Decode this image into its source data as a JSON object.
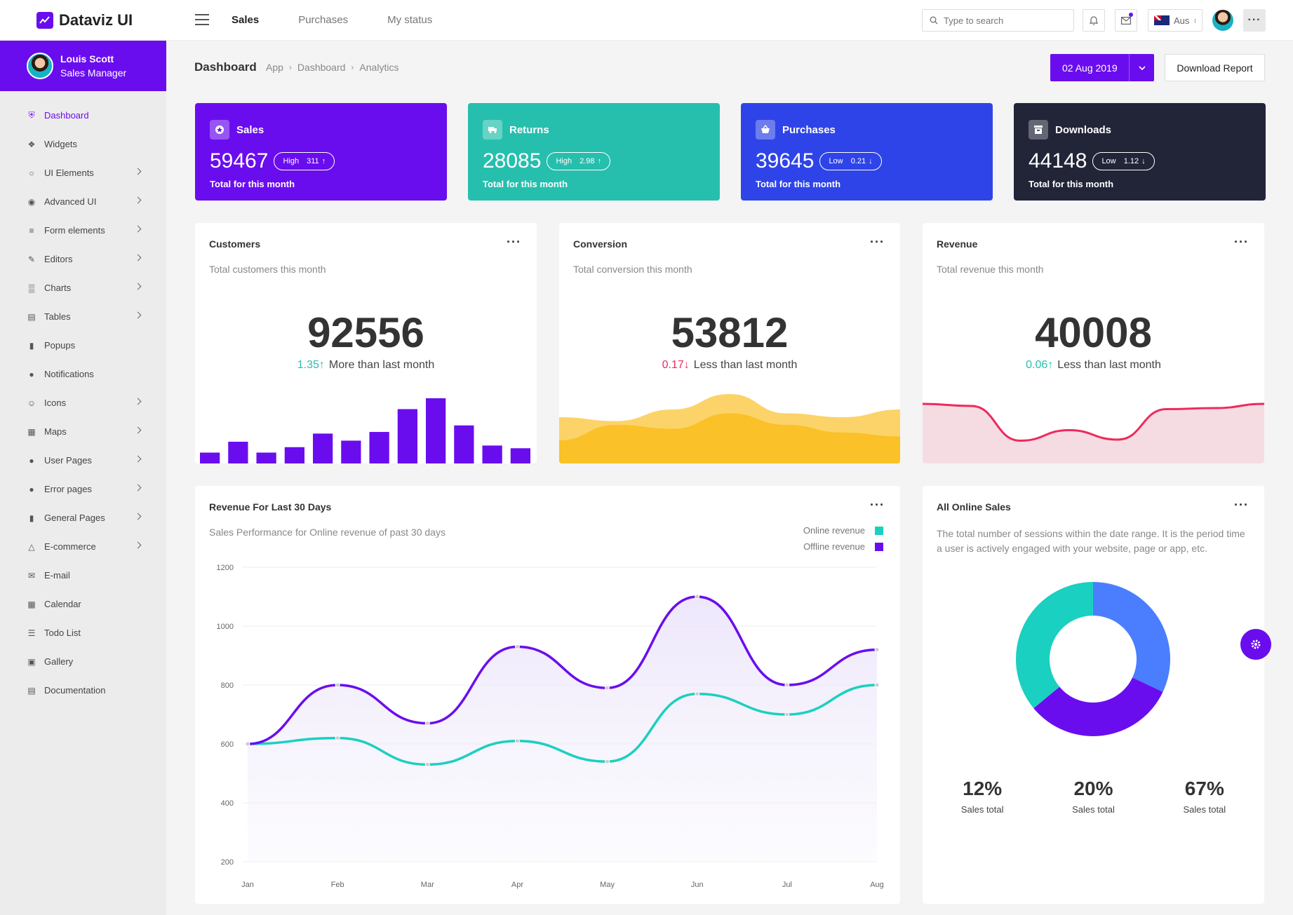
{
  "app": {
    "brand": "Dataviz UI"
  },
  "topnav": [
    {
      "label": "Sales",
      "active": true
    },
    {
      "label": "Purchases",
      "active": false
    },
    {
      "label": "My status",
      "active": false
    }
  ],
  "search": {
    "placeholder": "Type to search"
  },
  "lang": {
    "label": "Aus"
  },
  "profile": {
    "name": "Louis Scott",
    "role": "Sales Manager"
  },
  "sidebar": {
    "items": [
      {
        "label": "Dashboard",
        "icon": "shield-icon",
        "active": true,
        "chevron": false
      },
      {
        "label": "Widgets",
        "icon": "puzzle-icon",
        "active": false,
        "chevron": false
      },
      {
        "label": "UI Elements",
        "icon": "circle-icon",
        "active": false,
        "chevron": true
      },
      {
        "label": "Advanced UI",
        "icon": "palette-icon",
        "active": false,
        "chevron": true
      },
      {
        "label": "Form elements",
        "icon": "list-icon",
        "active": false,
        "chevron": true
      },
      {
        "label": "Editors",
        "icon": "pencil-icon",
        "active": false,
        "chevron": true
      },
      {
        "label": "Charts",
        "icon": "bar-chart-icon",
        "active": false,
        "chevron": true
      },
      {
        "label": "Tables",
        "icon": "table-icon",
        "active": false,
        "chevron": true
      },
      {
        "label": "Popups",
        "icon": "chat-icon",
        "active": false,
        "chevron": false
      },
      {
        "label": "Notifications",
        "icon": "bell-icon",
        "active": false,
        "chevron": false
      },
      {
        "label": "Icons",
        "icon": "smile-icon",
        "active": false,
        "chevron": true
      },
      {
        "label": "Maps",
        "icon": "map-icon",
        "active": false,
        "chevron": true
      },
      {
        "label": "User Pages",
        "icon": "user-icon",
        "active": false,
        "chevron": true
      },
      {
        "label": "Error pages",
        "icon": "alert-icon",
        "active": false,
        "chevron": true
      },
      {
        "label": "General Pages",
        "icon": "file-icon",
        "active": false,
        "chevron": true
      },
      {
        "label": "E-commerce",
        "icon": "basket-icon",
        "active": false,
        "chevron": true
      },
      {
        "label": "E-mail",
        "icon": "mail-icon",
        "active": false,
        "chevron": false
      },
      {
        "label": "Calendar",
        "icon": "calendar-icon",
        "active": false,
        "chevron": false
      },
      {
        "label": "Todo List",
        "icon": "checklist-icon",
        "active": false,
        "chevron": false
      },
      {
        "label": "Gallery",
        "icon": "image-icon",
        "active": false,
        "chevron": false
      },
      {
        "label": "Documentation",
        "icon": "doc-icon",
        "active": false,
        "chevron": false
      }
    ]
  },
  "header": {
    "title": "Dashboard",
    "breadcrumbs": [
      "App",
      "Dashboard",
      "Analytics"
    ],
    "date_label": "02 Aug 2019",
    "report_label": "Download Report"
  },
  "tiles": [
    {
      "label": "Sales",
      "value": "59467",
      "badge_level": "High",
      "badge_value": "311",
      "badge_dir": "up",
      "sub": "Total for this month",
      "color": "#6a0dee",
      "icon": "star-icon"
    },
    {
      "label": "Returns",
      "value": "28085",
      "badge_level": "High",
      "badge_value": "2.98",
      "badge_dir": "up",
      "sub": "Total for this month",
      "color": "#26bfad",
      "icon": "truck-icon"
    },
    {
      "label": "Purchases",
      "value": "39645",
      "badge_level": "Low",
      "badge_value": "0.21",
      "badge_dir": "down",
      "sub": "Total for this month",
      "color": "#2f44e8",
      "icon": "basket-icon"
    },
    {
      "label": "Downloads",
      "value": "44148",
      "badge_level": "Low",
      "badge_value": "1.12",
      "badge_dir": "down",
      "sub": "Total for this month",
      "color": "#222538",
      "icon": "archive-icon"
    }
  ],
  "kpis": [
    {
      "title": "Customers",
      "sub": "Total customers this month",
      "value": "92556",
      "change": "1.35",
      "dir": "up",
      "change_color": "#26bfad",
      "note": "More than last month"
    },
    {
      "title": "Conversion",
      "sub": "Total conversion this month",
      "value": "53812",
      "change": "0.17",
      "dir": "down",
      "change_color": "#ee2a5c",
      "note": "Less than last month"
    },
    {
      "title": "Revenue",
      "sub": "Total revenue this month",
      "value": "40008",
      "change": "0.06",
      "dir": "up",
      "change_color": "#26bfad",
      "note": "Less than last month"
    }
  ],
  "customers_bars": {
    "values": [
      2,
      4,
      2,
      3,
      5.5,
      4.2,
      5.8,
      10,
      12,
      7,
      3.3,
      2.8
    ],
    "color": "#6a0dee"
  },
  "conversion_area": {
    "back": [
      6,
      5.5,
      7,
      9,
      6.5,
      6,
      7
    ],
    "front": [
      3,
      5,
      4.5,
      6.5,
      5,
      4,
      3.5
    ],
    "colors": [
      "#fbcb4e",
      "#fac025"
    ]
  },
  "revenue_area": {
    "values": [
      7,
      6.8,
      3.5,
      4.5,
      3.6,
      6.5,
      6.6,
      7
    ],
    "color": "#ee2a5c",
    "fill": "#f5dce3"
  },
  "revenue30": {
    "title": "Revenue For Last 30 Days",
    "sub": "Sales Performance for Online revenue of past 30 days",
    "legend": [
      {
        "name": "Online revenue",
        "color": "#1ad0c0"
      },
      {
        "name": "Offline revenue",
        "color": "#6a0dee"
      }
    ]
  },
  "online_sales": {
    "title": "All Online Sales",
    "sub": "The total number of sessions within the date range. It is the period time a user is actively engaged with your website, page or app, etc.",
    "stats": [
      {
        "value": "12%",
        "label": "Sales total"
      },
      {
        "value": "20%",
        "label": "Sales total"
      },
      {
        "value": "67%",
        "label": "Sales total"
      }
    ]
  },
  "chart_data": [
    {
      "type": "line",
      "categories": [
        "Jan",
        "Feb",
        "Mar",
        "Apr",
        "May",
        "Jun",
        "Jul",
        "Aug"
      ],
      "series": [
        {
          "name": "Offline revenue",
          "values": [
            600,
            800,
            670,
            930,
            790,
            1100,
            800,
            920
          ],
          "color": "#6a0dee"
        },
        {
          "name": "Online revenue",
          "values": [
            600,
            620,
            530,
            610,
            540,
            770,
            700,
            800
          ],
          "color": "#1ad0c0"
        }
      ],
      "yticks": [
        200,
        400,
        600,
        800,
        1000,
        1200
      ],
      "ylim": [
        200,
        1200
      ],
      "grid": true,
      "legend": "top-right"
    },
    {
      "type": "pie",
      "donut": true,
      "values": [
        32,
        32,
        36
      ],
      "colors": [
        "#4a7eff",
        "#6a0dee",
        "#1ad0c0"
      ]
    }
  ]
}
